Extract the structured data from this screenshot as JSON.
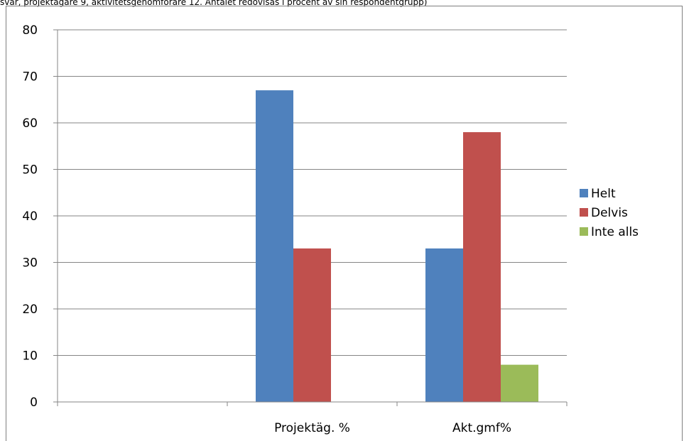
{
  "caption": "svar, projektägare 9, aktivitetsgenomförare 12. Antalet redovisas i procent av sin respondentgrupp)",
  "chart_data": {
    "type": "bar",
    "categories": [
      "",
      "Projektäg. %",
      "Akt.gmf%"
    ],
    "series": [
      {
        "name": "Helt",
        "color": "#4f81bd",
        "values": [
          0,
          67,
          33
        ]
      },
      {
        "name": "Delvis",
        "color": "#c0504d",
        "values": [
          0,
          33,
          58
        ]
      },
      {
        "name": "Inte alls",
        "color": "#9bbb59",
        "values": [
          0,
          0,
          8
        ]
      }
    ],
    "ylim": [
      0,
      80
    ],
    "yticks": [
      0,
      10,
      20,
      30,
      40,
      50,
      60,
      70,
      80
    ],
    "grid": true,
    "legend_position": "right"
  }
}
